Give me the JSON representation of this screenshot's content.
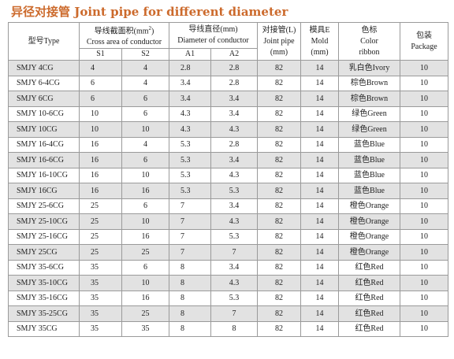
{
  "title": "异径对接管  Joint pipe for different diameter",
  "headers": {
    "type": "型号Type",
    "area_cn": "导线截面积(mm",
    "area_sup": "2",
    "area_close": ")",
    "area_en": "Cross area of conductor",
    "dia_cn": "导线直径(mm)",
    "dia_en": "Diameter of conductor",
    "pipe_cn": "对接管(L)",
    "pipe_en": "Joint pipe",
    "pipe_unit": "(mm)",
    "mold_cn": "模具E",
    "mold_en": "Mold",
    "mold_unit": "(mm)",
    "color_cn": "色标",
    "color_en": "Color",
    "color_en2": "ribbon",
    "pkg_cn": "包装",
    "pkg_en": "Package",
    "s1": "S1",
    "s2": "S2",
    "a1": "A1",
    "a2": "A2"
  },
  "rows": [
    {
      "type": "SMJY 4CG",
      "s1": "4",
      "s2": "4",
      "a1": "2.8",
      "a2": "2.8",
      "pipe": "82",
      "mold": "14",
      "color": "乳白色Ivory",
      "pkg": "10"
    },
    {
      "type": "SMJY 6-4CG",
      "s1": "6",
      "s2": "4",
      "a1": "3.4",
      "a2": "2.8",
      "pipe": "82",
      "mold": "14",
      "color": "棕色Brown",
      "pkg": "10"
    },
    {
      "type": "SMJY 6CG",
      "s1": "6",
      "s2": "6",
      "a1": "3.4",
      "a2": "3.4",
      "pipe": "82",
      "mold": "14",
      "color": "棕色Brown",
      "pkg": "10"
    },
    {
      "type": "SMJY 10-6CG",
      "s1": "10",
      "s2": "6",
      "a1": "4.3",
      "a2": "3.4",
      "pipe": "82",
      "mold": "14",
      "color": "绿色Green",
      "pkg": "10"
    },
    {
      "type": "SMJY 10CG",
      "s1": "10",
      "s2": "10",
      "a1": "4.3",
      "a2": "4.3",
      "pipe": "82",
      "mold": "14",
      "color": "绿色Green",
      "pkg": "10"
    },
    {
      "type": "SMJY 16-4CG",
      "s1": "16",
      "s2": "4",
      "a1": "5.3",
      "a2": "2.8",
      "pipe": "82",
      "mold": "14",
      "color": "蓝色Blue",
      "pkg": "10"
    },
    {
      "type": "SMJY 16-6CG",
      "s1": "16",
      "s2": "6",
      "a1": "5.3",
      "a2": "3.4",
      "pipe": "82",
      "mold": "14",
      "color": "蓝色Blue",
      "pkg": "10"
    },
    {
      "type": "SMJY 16-10CG",
      "s1": "16",
      "s2": "10",
      "a1": "5.3",
      "a2": "4.3",
      "pipe": "82",
      "mold": "14",
      "color": "蓝色Blue",
      "pkg": "10"
    },
    {
      "type": "SMJY 16CG",
      "s1": "16",
      "s2": "16",
      "a1": "5.3",
      "a2": "5.3",
      "pipe": "82",
      "mold": "14",
      "color": "蓝色Blue",
      "pkg": "10"
    },
    {
      "type": "SMJY 25-6CG",
      "s1": "25",
      "s2": "6",
      "a1": "7",
      "a2": "3.4",
      "pipe": "82",
      "mold": "14",
      "color": "橙色Orange",
      "pkg": "10"
    },
    {
      "type": "SMJY 25-10CG",
      "s1": "25",
      "s2": "10",
      "a1": "7",
      "a2": "4.3",
      "pipe": "82",
      "mold": "14",
      "color": "橙色Orange",
      "pkg": "10"
    },
    {
      "type": "SMJY 25-16CG",
      "s1": "25",
      "s2": "16",
      "a1": "7",
      "a2": "5.3",
      "pipe": "82",
      "mold": "14",
      "color": "橙色Orange",
      "pkg": "10"
    },
    {
      "type": "SMJY 25CG",
      "s1": "25",
      "s2": "25",
      "a1": "7",
      "a2": "7",
      "pipe": "82",
      "mold": "14",
      "color": "橙色Orange",
      "pkg": "10"
    },
    {
      "type": "SMJY 35-6CG",
      "s1": "35",
      "s2": "6",
      "a1": "8",
      "a2": "3.4",
      "pipe": "82",
      "mold": "14",
      "color": "红色Red",
      "pkg": "10"
    },
    {
      "type": "SMJY 35-10CG",
      "s1": "35",
      "s2": "10",
      "a1": "8",
      "a2": "4.3",
      "pipe": "82",
      "mold": "14",
      "color": "红色Red",
      "pkg": "10"
    },
    {
      "type": "SMJY 35-16CG",
      "s1": "35",
      "s2": "16",
      "a1": "8",
      "a2": "5.3",
      "pipe": "82",
      "mold": "14",
      "color": "红色Red",
      "pkg": "10"
    },
    {
      "type": "SMJY 35-25CG",
      "s1": "35",
      "s2": "25",
      "a1": "8",
      "a2": "7",
      "pipe": "82",
      "mold": "14",
      "color": "红色Red",
      "pkg": "10"
    },
    {
      "type": "SMJY 35CG",
      "s1": "35",
      "s2": "35",
      "a1": "8",
      "a2": "8",
      "pipe": "82",
      "mold": "14",
      "color": "红色Red",
      "pkg": "10"
    }
  ]
}
